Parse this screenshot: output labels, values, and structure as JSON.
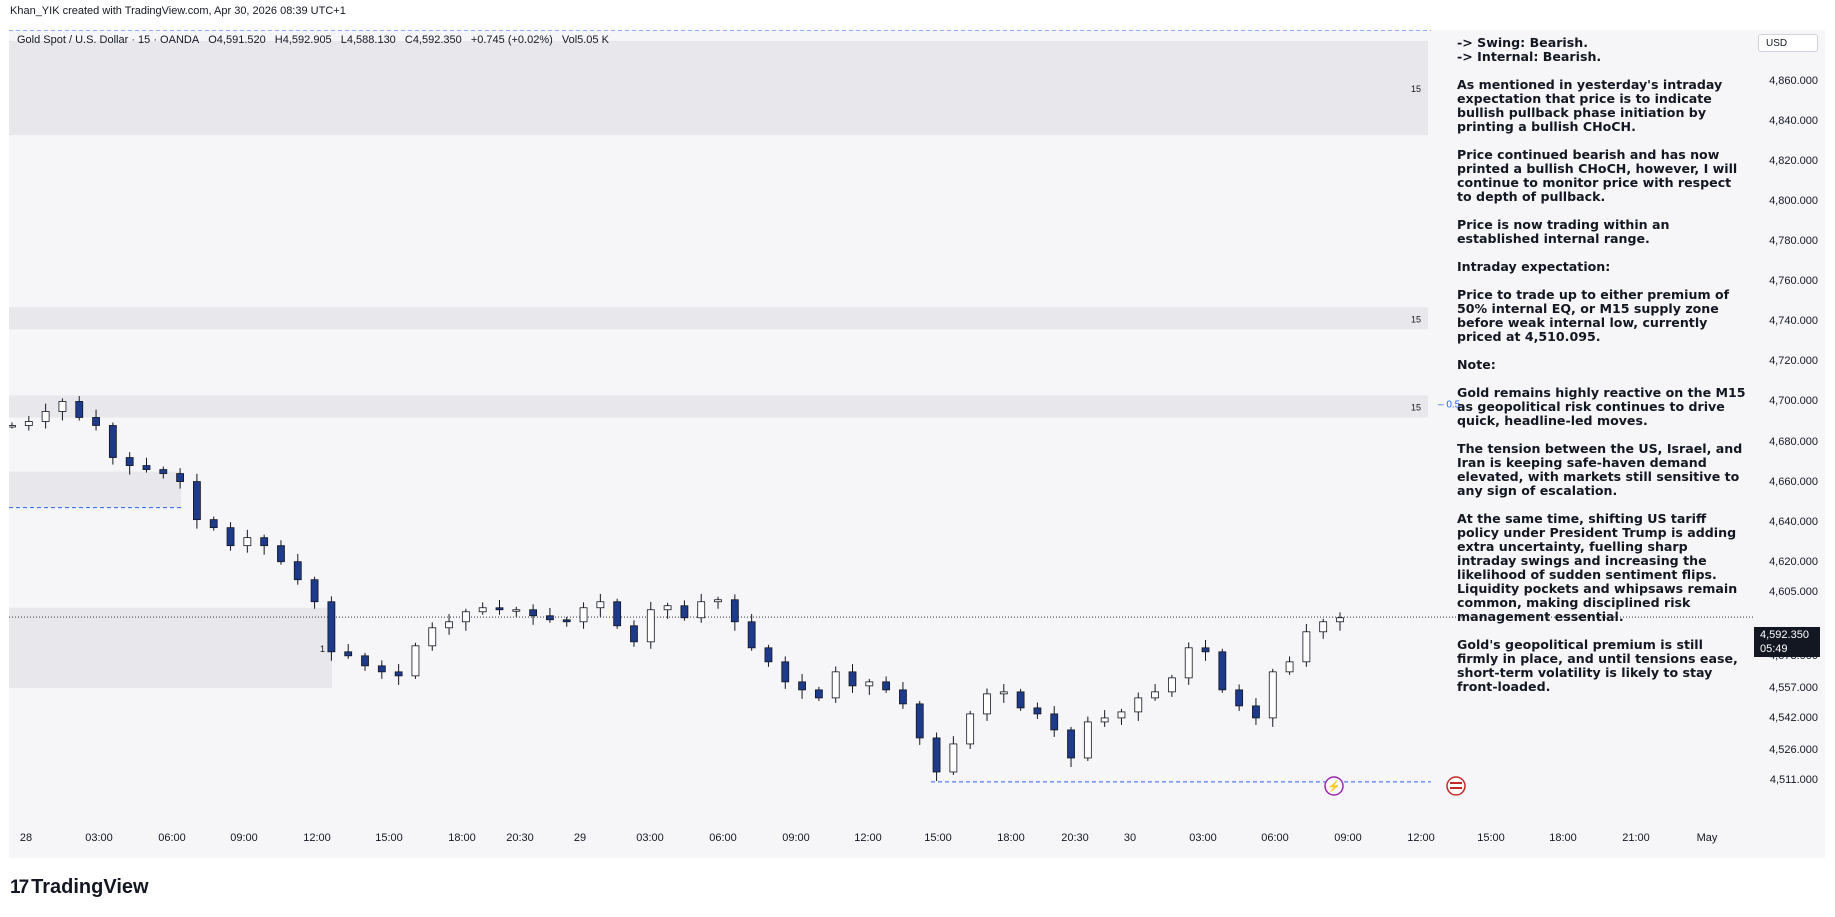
{
  "header": {
    "text": "Khan_YIK created with TradingView.com, Apr 30, 2026 08:39 UTC+1"
  },
  "legend": {
    "symbol": "Gold Spot / U.S. Dollar · 15 · OANDA",
    "open": "O4,591.520",
    "high": "H4,592.905",
    "low": "L4,588.130",
    "close": "C4,592.350",
    "change": "+0.745 (+0.02%)",
    "volume": "Vol5.05 K"
  },
  "annotation": {
    "swing": "-> Swing: Bearish.",
    "internal": "-> Internal: Bearish.",
    "p1": "As mentioned in yesterday's intraday expectation that price is to indicate bullish pullback phase initiation by printing a bullish CHoCH.",
    "p2": "Price continued bearish and has now printed a bullish CHoCH, however, I will continue to monitor price with respect to depth of pullback.",
    "p3": "Price is now trading within an established internal range.",
    "p4": "Intraday expectation:",
    "p5": "Price to trade up to either premium of 50% internal EQ, or M15 supply zone before weak internal low, currently priced at 4,510.095.",
    "p6": "Note:",
    "p7": "Gold remains highly reactive on the M15 as geopolitical risk continues to drive quick, headline-led moves.",
    "p8": "The tension between the US, Israel, and Iran is keeping safe-haven demand elevated, with markets still sensitive to any sign of escalation.",
    "p9": "At the same time, shifting US tariff policy under President Trump is adding extra uncertainty, fuelling sharp intraday swings and increasing the likelihood of sudden sentiment flips. Liquidity pockets and whipsaws remain common, making disciplined risk management essential.",
    "p10": "Gold's geopolitical premium is still firmly in place, and until tensions ease, short-term volatility is likely to stay front-loaded."
  },
  "price_axis": {
    "currency": "USD",
    "last_price": "4,592.350",
    "countdown": "05:49"
  },
  "branding": {
    "logo_text": "TradingView",
    "logo_mark": "17"
  },
  "colors": {
    "up": "#ffffff",
    "down": "#1e3a8a",
    "wick": "#131722",
    "zone": "#e8e8ec",
    "dashed": "#2962ff",
    "bg": "#f6f6f8"
  },
  "chart_data": {
    "type": "candlestick",
    "symbol": "Gold Spot / U.S. Dollar",
    "interval": "15",
    "ylim": [
      4500,
      4880
    ],
    "y_ticks": [
      4511,
      4526,
      4542,
      4557,
      4573,
      4592.35,
      4605,
      4620,
      4640,
      4660,
      4680,
      4700,
      4720,
      4740,
      4760,
      4780,
      4800,
      4820,
      4840,
      4860
    ],
    "y_tick_labels": [
      "4,511.000",
      "4,526.000",
      "4,542.000",
      "4,557.000",
      "4,573.000",
      "4,592.350",
      "4,605.000",
      "4,620.000",
      "4,640.000",
      "4,660.000",
      "4,680.000",
      "4,700.000",
      "4,720.000",
      "4,740.000",
      "4,760.000",
      "4,780.000",
      "4,800.000",
      "4,820.000",
      "4,840.000",
      "4,860.000"
    ],
    "x_ticks": [
      "28",
      "03:00",
      "06:00",
      "09:00",
      "12:00",
      "15:00",
      "18:00",
      "20:30",
      "29",
      "03:00",
      "06:00",
      "09:00",
      "12:00",
      "15:00",
      "18:00",
      "20:30",
      "30",
      "03:00",
      "06:00",
      "09:00",
      "12:00",
      "15:00",
      "18:00",
      "21:00",
      "May"
    ],
    "close_path": [
      4688,
      4690,
      4695,
      4700,
      4692,
      4688,
      4672,
      4668,
      4666,
      4664,
      4660,
      4641,
      4637,
      4628,
      4632,
      4628,
      4620,
      4611,
      4600,
      4575,
      4573,
      4568,
      4565,
      4563,
      4578,
      4587,
      4590,
      4595,
      4597,
      4596,
      4596,
      4593,
      4591,
      4590,
      4597,
      4600,
      4588,
      4580,
      4596,
      4598,
      4592,
      4600,
      4601,
      4590,
      4577,
      4570,
      4560,
      4556,
      4552,
      4565,
      4558,
      4560,
      4556,
      4549,
      4532,
      4515,
      4529,
      4544,
      4554,
      4555,
      4547,
      4544,
      4536,
      4522,
      4540,
      4542,
      4545,
      4552,
      4555,
      4562,
      4577,
      4575,
      4556,
      4548,
      4542,
      4565,
      4570,
      4585,
      4590,
      4592
    ],
    "zones": [
      {
        "label": "15",
        "top": 4880,
        "bottom": 4833
      },
      {
        "label": "15",
        "top": 4747,
        "bottom": 4736
      },
      {
        "label": "15",
        "top": 4703,
        "bottom": 4692
      },
      {
        "label": "",
        "top": 4665,
        "bottom": 4647
      },
      {
        "label": "1",
        "top": 4597,
        "bottom": 4557
      }
    ],
    "levels": [
      {
        "label": "0.5",
        "value": 4699
      },
      {
        "label": "",
        "value": 4510.095
      }
    ]
  }
}
